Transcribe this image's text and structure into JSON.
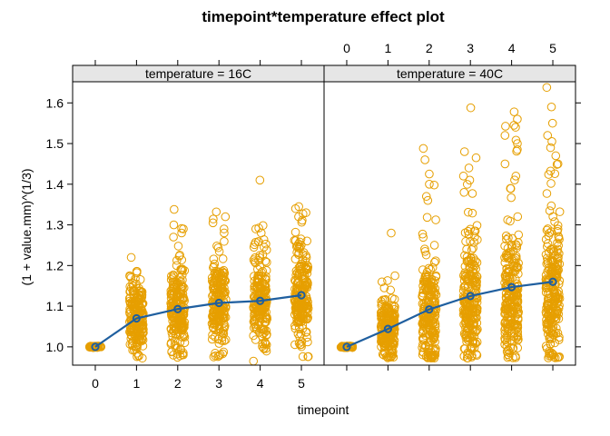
{
  "chart_data": {
    "type": "scatter",
    "title": "timepoint*temperature effect plot",
    "xlabel": "timepoint",
    "ylabel": "(1 + value.mm)^(1/3)",
    "x_ticks": [
      "0",
      "1",
      "2",
      "3",
      "4",
      "5"
    ],
    "y_ticks": [
      "1.0",
      "1.1",
      "1.2",
      "1.3",
      "1.4",
      "1.5",
      "1.6"
    ],
    "xlim": [
      -0.55,
      5.55
    ],
    "ylim": [
      0.955,
      1.652
    ],
    "colors": {
      "points": "#E69F00",
      "fit": "#1F5F9F",
      "strip": "#E6E6E6"
    },
    "panels": [
      {
        "strip": "temperature = 16C",
        "fit": {
          "x": [
            0,
            1,
            2,
            3,
            4,
            5
          ],
          "y": [
            1.0,
            1.07,
            1.093,
            1.108,
            1.113,
            1.127
          ]
        },
        "points_by_timepoint": [
          {
            "x": 0,
            "n": 40,
            "base_mean": 1.0,
            "base_sd": 0.001,
            "tail_n": 0,
            "tail_scale": 0,
            "extra": []
          },
          {
            "x": 1,
            "n": 200,
            "base_mean": 1.07,
            "base_sd": 0.045,
            "tail_n": 5,
            "tail_scale": 0.06,
            "extra": [
              1.22,
              1.175,
              1.17
            ]
          },
          {
            "x": 2,
            "n": 200,
            "base_mean": 1.087,
            "base_sd": 0.05,
            "tail_n": 8,
            "tail_scale": 0.08,
            "extra": [
              1.338,
              1.3,
              1.29,
              1.27
            ]
          },
          {
            "x": 3,
            "n": 200,
            "base_mean": 1.1,
            "base_sd": 0.055,
            "tail_n": 10,
            "tail_scale": 0.09,
            "extra": [
              1.332,
              1.32,
              1.305,
              1.29
            ]
          },
          {
            "x": 4,
            "n": 200,
            "base_mean": 1.105,
            "base_sd": 0.055,
            "tail_n": 10,
            "tail_scale": 0.09,
            "extra": [
              1.41,
              1.29,
              1.28,
              0.965
            ]
          },
          {
            "x": 5,
            "n": 200,
            "base_mean": 1.12,
            "base_sd": 0.06,
            "tail_n": 12,
            "tail_scale": 0.09,
            "extra": [
              1.345,
              1.34,
              1.33,
              1.32
            ]
          }
        ]
      },
      {
        "strip": "temperature = 40C",
        "fit": {
          "x": [
            0,
            1,
            2,
            3,
            4,
            5
          ],
          "y": [
            1.0,
            1.044,
            1.092,
            1.125,
            1.147,
            1.16
          ]
        },
        "points_by_timepoint": [
          {
            "x": 0,
            "n": 40,
            "base_mean": 1.0,
            "base_sd": 0.001,
            "tail_n": 0,
            "tail_scale": 0,
            "extra": []
          },
          {
            "x": 1,
            "n": 200,
            "base_mean": 1.04,
            "base_sd": 0.035,
            "tail_n": 6,
            "tail_scale": 0.05,
            "extra": [
              1.28,
              1.175,
              1.16,
              1.145
            ]
          },
          {
            "x": 2,
            "n": 200,
            "base_mean": 1.07,
            "base_sd": 0.06,
            "tail_n": 20,
            "tail_scale": 0.12,
            "extra": [
              1.488,
              1.46,
              1.425,
              1.4,
              1.37,
              1.36
            ]
          },
          {
            "x": 3,
            "n": 200,
            "base_mean": 1.095,
            "base_sd": 0.07,
            "tail_n": 25,
            "tail_scale": 0.14,
            "extra": [
              1.588,
              1.48,
              1.465,
              1.44,
              1.42,
              1.41
            ]
          },
          {
            "x": 4,
            "n": 200,
            "base_mean": 1.11,
            "base_sd": 0.075,
            "tail_n": 25,
            "tail_scale": 0.15,
            "extra": [
              1.578,
              1.56,
              1.545,
              1.54,
              1.52,
              1.5,
              1.45,
              1.42
            ]
          },
          {
            "x": 5,
            "n": 200,
            "base_mean": 1.12,
            "base_sd": 0.08,
            "tail_n": 28,
            "tail_scale": 0.16,
            "extra": [
              1.638,
              1.59,
              1.55,
              1.52,
              1.505,
              1.49,
              1.47,
              1.45
            ]
          }
        ]
      }
    ]
  }
}
